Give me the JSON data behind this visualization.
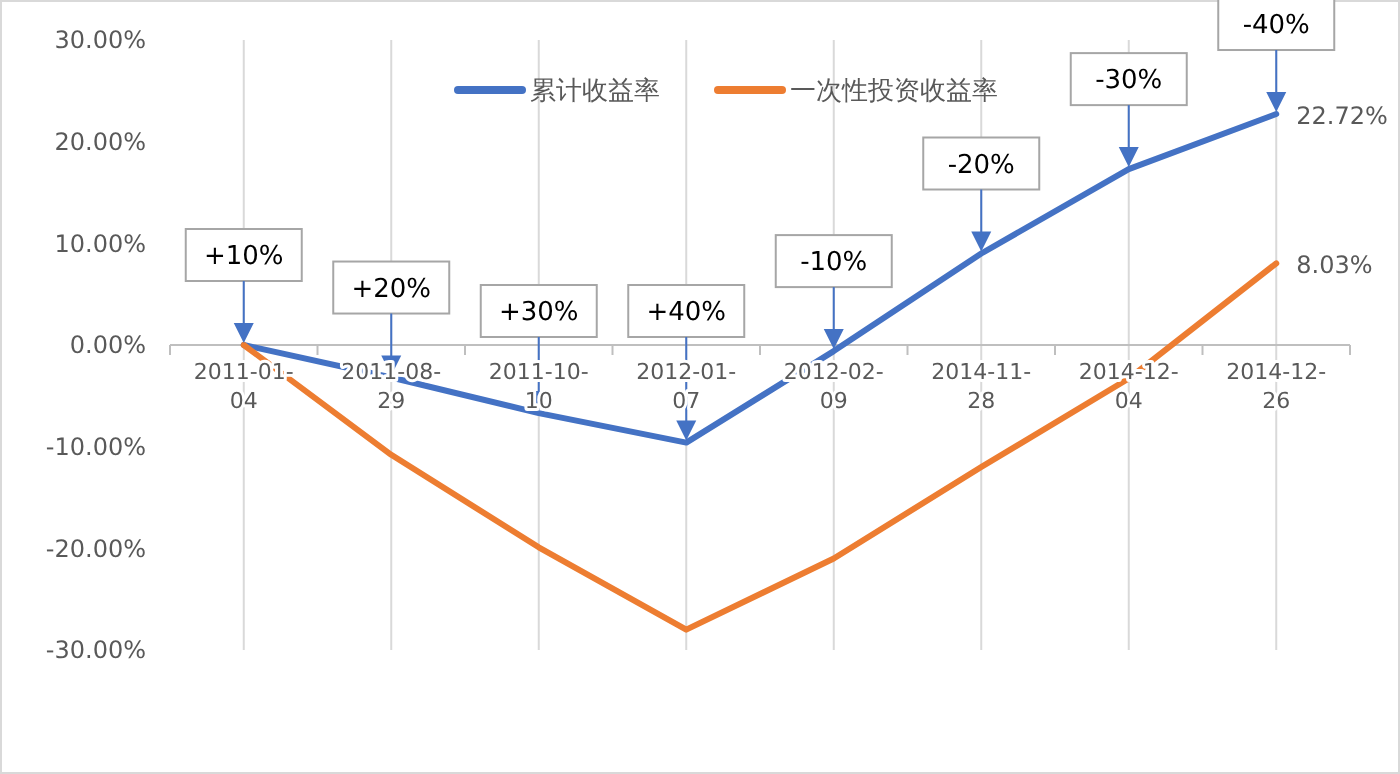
{
  "chart_data": {
    "type": "line",
    "categories": [
      "2011-01-04",
      "2011-08-29",
      "2011-10-10",
      "2012-01-07",
      "2012-02-09",
      "2014-11-28",
      "2014-12-04",
      "2014-12-26"
    ],
    "series": [
      {
        "name": "累计收益率",
        "color": "#4472c4",
        "values": [
          0,
          -3.2,
          -6.7,
          -9.6,
          -0.6,
          9.0,
          17.3,
          22.72
        ],
        "value_labels": [
          null,
          null,
          null,
          null,
          null,
          null,
          null,
          "22.72%"
        ]
      },
      {
        "name": "一次性投资收益率",
        "color": "#ed7d31",
        "values": [
          0,
          -10.8,
          -19.9,
          -28.0,
          -21.0,
          -12.0,
          -3.3,
          8.03
        ],
        "value_labels": [
          null,
          null,
          null,
          null,
          null,
          null,
          null,
          "8.03%"
        ]
      }
    ],
    "ylim": [
      -30,
      30
    ],
    "yticks": [
      {
        "value": -30,
        "label": "-30.00%"
      },
      {
        "value": -20,
        "label": "-20.00%"
      },
      {
        "value": -10,
        "label": "-10.00%"
      },
      {
        "value": 0,
        "label": "0.00%"
      },
      {
        "value": 10,
        "label": "10.00%"
      },
      {
        "value": 20,
        "label": "20.00%"
      },
      {
        "value": 30,
        "label": "30.00%"
      }
    ],
    "grid": "x",
    "legend": "top",
    "marker": "none",
    "line_style": "solid",
    "annotations": [
      {
        "text": "+10%",
        "x": "2011-01-04",
        "y": 0
      },
      {
        "text": "+20%",
        "x": "2011-08-29",
        "y": -3.2
      },
      {
        "text": "+30%",
        "x": "2011-10-10",
        "y": -6.7
      },
      {
        "text": "+40%",
        "x": "2012-01-07",
        "y": -9.6
      },
      {
        "text": "-10%",
        "x": "2012-02-09",
        "y": -0.6
      },
      {
        "text": "-20%",
        "x": "2014-11-28",
        "y": 9.0
      },
      {
        "text": "-30%",
        "x": "2014-12-04",
        "y": 17.3
      },
      {
        "text": "-40%",
        "x": "2014-12-26",
        "y": 22.72
      }
    ]
  }
}
